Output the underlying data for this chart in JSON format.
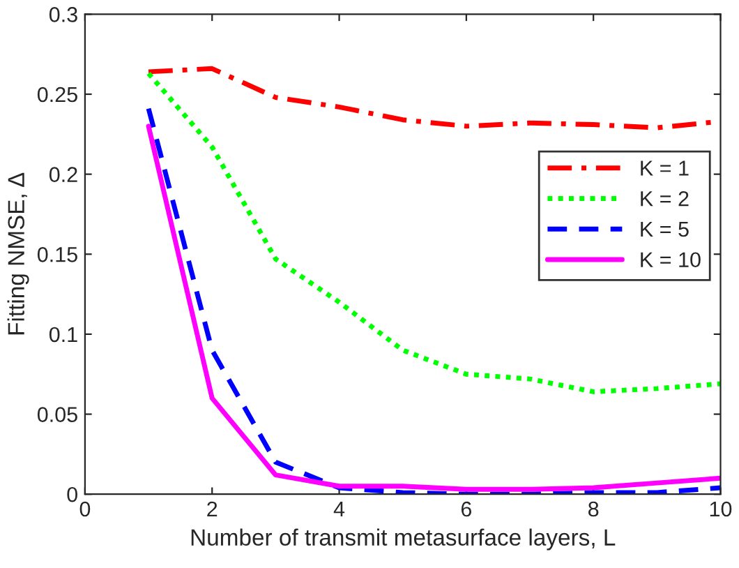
{
  "chart_data": {
    "type": "line",
    "xlabel": "Number of transmit metasurface layers, L",
    "ylabel": "Fitting NMSE, Δ",
    "x": [
      1,
      2,
      3,
      4,
      5,
      6,
      7,
      8,
      9,
      10
    ],
    "series": [
      {
        "name": "K = 1",
        "color": "#ff0000",
        "line_style": "dashdot",
        "values": [
          0.264,
          0.266,
          0.248,
          0.242,
          0.234,
          0.23,
          0.232,
          0.231,
          0.229,
          0.233
        ]
      },
      {
        "name": "K = 2",
        "color": "#00ff00",
        "line_style": "dotted",
        "values": [
          0.263,
          0.217,
          0.147,
          0.12,
          0.09,
          0.075,
          0.072,
          0.064,
          0.066,
          0.069
        ]
      },
      {
        "name": "K = 5",
        "color": "#0000ff",
        "line_style": "dashed",
        "values": [
          0.241,
          0.09,
          0.02,
          0.004,
          0.001,
          0.0,
          0.0,
          0.001,
          0.001,
          0.004
        ]
      },
      {
        "name": "K = 10",
        "color": "#ff00ff",
        "line_style": "solid",
        "values": [
          0.23,
          0.06,
          0.012,
          0.005,
          0.005,
          0.003,
          0.003,
          0.004,
          0.007,
          0.01
        ]
      }
    ],
    "xlim": [
      0,
      10
    ],
    "xticks": [
      0,
      2,
      4,
      6,
      8,
      10
    ],
    "ylim": [
      0,
      0.3
    ],
    "yticks": [
      0,
      0.05,
      0.1,
      0.15,
      0.2,
      0.25,
      0.3
    ],
    "grid": false,
    "legend": "right"
  }
}
